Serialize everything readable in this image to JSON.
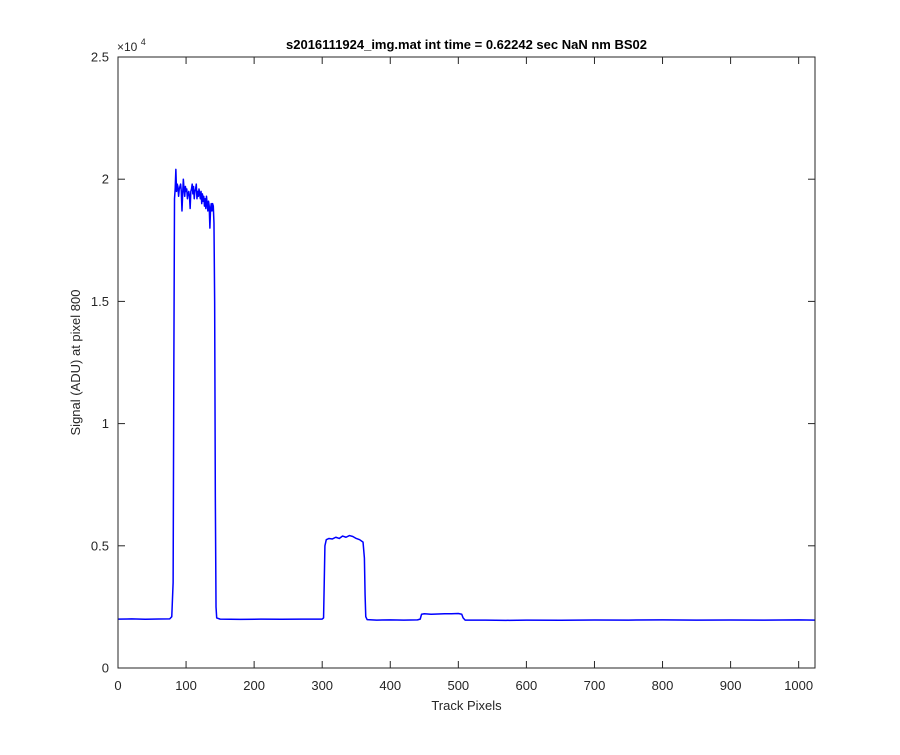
{
  "chart_data": {
    "type": "line",
    "title": "s2016111924_img.mat int time = 0.62242 sec  NaN nm BS02",
    "xlabel": "Track Pixels",
    "ylabel": "Signal (ADU) at pixel 800",
    "xlim": [
      0,
      1024
    ],
    "ylim": [
      0,
      25000
    ],
    "xticks": [
      0,
      100,
      200,
      300,
      400,
      500,
      600,
      700,
      800,
      900,
      1000
    ],
    "xtick_labels": [
      "0",
      "100",
      "200",
      "300",
      "400",
      "500",
      "600",
      "700",
      "800",
      "900",
      "1000"
    ],
    "yticks": [
      0,
      5000,
      10000,
      15000,
      20000,
      25000
    ],
    "ytick_labels": [
      "0",
      "0.5",
      "1",
      "1.5",
      "2",
      "2.5"
    ],
    "y_exponent_label": "×10",
    "y_exponent_power": "4",
    "grid": false,
    "series": [
      {
        "color": "#0000ff",
        "points": [
          [
            0,
            2000
          ],
          [
            20,
            2010
          ],
          [
            40,
            1995
          ],
          [
            60,
            2005
          ],
          [
            76,
            2010
          ],
          [
            79,
            2100
          ],
          [
            81,
            3500
          ],
          [
            82,
            12000
          ],
          [
            83,
            19200
          ],
          [
            84,
            19600
          ],
          [
            85,
            20400
          ],
          [
            86,
            19500
          ],
          [
            87,
            19800
          ],
          [
            88,
            19700
          ],
          [
            89,
            19300
          ],
          [
            90,
            19600
          ],
          [
            91,
            19700
          ],
          [
            92,
            19800
          ],
          [
            93,
            19500
          ],
          [
            94,
            18700
          ],
          [
            95,
            19400
          ],
          [
            96,
            20000
          ],
          [
            97,
            19600
          ],
          [
            98,
            19300
          ],
          [
            99,
            19700
          ],
          [
            100,
            19500
          ],
          [
            101,
            19600
          ],
          [
            102,
            19200
          ],
          [
            103,
            19400
          ],
          [
            104,
            19500
          ],
          [
            105,
            19300
          ],
          [
            106,
            18800
          ],
          [
            107,
            19500
          ],
          [
            108,
            19600
          ],
          [
            109,
            19800
          ],
          [
            110,
            19400
          ],
          [
            111,
            19700
          ],
          [
            112,
            19200
          ],
          [
            113,
            19500
          ],
          [
            114,
            19600
          ],
          [
            115,
            19800
          ],
          [
            116,
            19200
          ],
          [
            117,
            19500
          ],
          [
            118,
            19300
          ],
          [
            119,
            19600
          ],
          [
            120,
            19400
          ],
          [
            121,
            19200
          ],
          [
            122,
            19500
          ],
          [
            123,
            19000
          ],
          [
            124,
            19400
          ],
          [
            125,
            19100
          ],
          [
            126,
            19300
          ],
          [
            127,
            18900
          ],
          [
            128,
            19200
          ],
          [
            129,
            18800
          ],
          [
            130,
            19300
          ],
          [
            131,
            19000
          ],
          [
            132,
            18700
          ],
          [
            133,
            19100
          ],
          [
            134,
            18900
          ],
          [
            135,
            18000
          ],
          [
            136,
            18800
          ],
          [
            137,
            19000
          ],
          [
            138,
            18700
          ],
          [
            139,
            19000
          ],
          [
            140,
            18900
          ],
          [
            141,
            18200
          ],
          [
            142,
            15000
          ],
          [
            143,
            7000
          ],
          [
            144,
            2500
          ],
          [
            145,
            2050
          ],
          [
            150,
            2000
          ],
          [
            180,
            1990
          ],
          [
            210,
            2000
          ],
          [
            240,
            1995
          ],
          [
            270,
            2000
          ],
          [
            300,
            2000
          ],
          [
            302,
            2050
          ],
          [
            303,
            3500
          ],
          [
            304,
            5000
          ],
          [
            306,
            5250
          ],
          [
            310,
            5300
          ],
          [
            315,
            5280
          ],
          [
            320,
            5350
          ],
          [
            325,
            5300
          ],
          [
            330,
            5400
          ],
          [
            335,
            5350
          ],
          [
            340,
            5420
          ],
          [
            345,
            5380
          ],
          [
            350,
            5300
          ],
          [
            355,
            5250
          ],
          [
            360,
            5150
          ],
          [
            362,
            4500
          ],
          [
            363,
            3000
          ],
          [
            364,
            2100
          ],
          [
            366,
            1980
          ],
          [
            380,
            1960
          ],
          [
            400,
            1970
          ],
          [
            420,
            1960
          ],
          [
            440,
            1970
          ],
          [
            444,
            2000
          ],
          [
            446,
            2200
          ],
          [
            450,
            2220
          ],
          [
            460,
            2200
          ],
          [
            470,
            2210
          ],
          [
            480,
            2220
          ],
          [
            490,
            2220
          ],
          [
            500,
            2230
          ],
          [
            505,
            2200
          ],
          [
            507,
            2050
          ],
          [
            510,
            1960
          ],
          [
            540,
            1960
          ],
          [
            570,
            1950
          ],
          [
            600,
            1960
          ],
          [
            650,
            1955
          ],
          [
            700,
            1965
          ],
          [
            750,
            1960
          ],
          [
            800,
            1970
          ],
          [
            850,
            1960
          ],
          [
            900,
            1965
          ],
          [
            950,
            1960
          ],
          [
            1000,
            1970
          ],
          [
            1024,
            1960
          ]
        ]
      }
    ]
  }
}
